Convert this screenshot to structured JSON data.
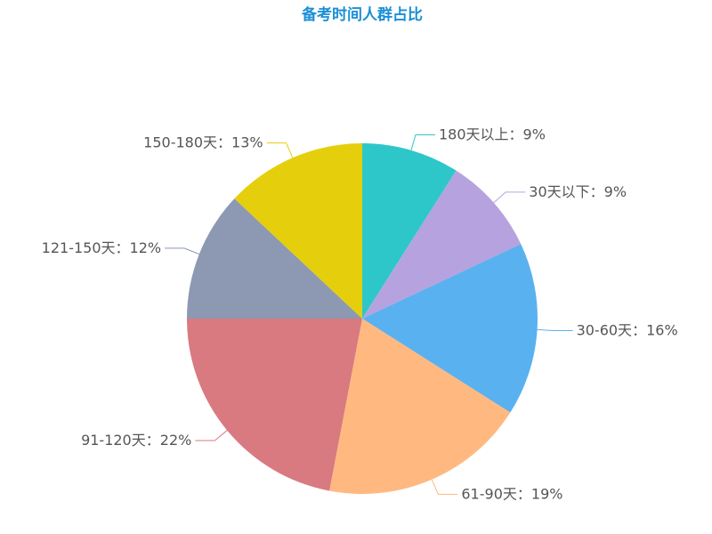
{
  "chart_data": {
    "type": "pie",
    "title": "备考时间人群占比",
    "categories": [
      "180天以上",
      "30天以下",
      "30-60天",
      "61-90天",
      "91-120天",
      "121-150天",
      "150-180天"
    ],
    "values": [
      9,
      9,
      16,
      19,
      22,
      12,
      13
    ],
    "value_labels": [
      "9%",
      "9%",
      "16%",
      "19%",
      "22%",
      "12%",
      "13%"
    ],
    "label_separator": "：",
    "colors": [
      "#2ec7c9",
      "#b6a2de",
      "#5ab1ef",
      "#ffb980",
      "#d87a80",
      "#8d98b3",
      "#e5cf0d"
    ]
  }
}
